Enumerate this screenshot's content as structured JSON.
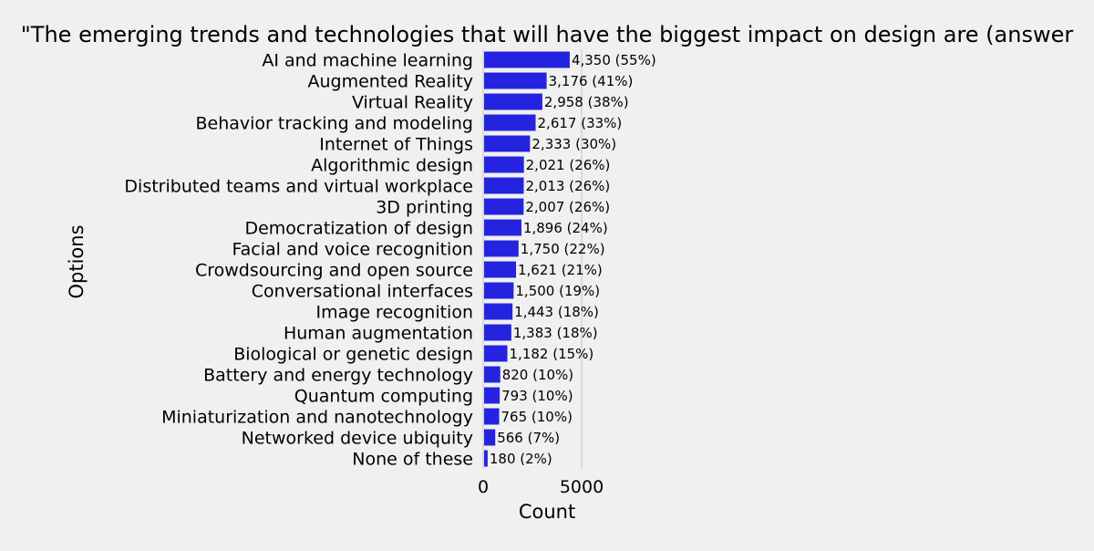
{
  "chart_data": {
    "type": "bar",
    "orientation": "horizontal",
    "title": "\"The emerging trends and technologies that will have the biggest impact on design are (answer",
    "xlabel": "Count",
    "ylabel": "Options",
    "xlim": [
      0,
      6300
    ],
    "xticks": [
      {
        "value": 0,
        "label": "0"
      },
      {
        "value": 5000,
        "label": "5000"
      }
    ],
    "grid": "x-only",
    "legend": "none",
    "bar_color": "#2424e0",
    "background": "#f0f0f0",
    "categories": [
      "AI and machine learning",
      "Augmented Reality",
      "Virtual Reality",
      "Behavior tracking and modeling",
      "Internet of Things",
      "Algorithmic design",
      "Distributed teams and virtual workplace",
      "3D printing",
      "Democratization of design",
      "Facial and voice recognition",
      "Crowdsourcing and open source",
      "Conversational interfaces",
      "Image recognition",
      "Human augmentation",
      "Biological or genetic design",
      "Battery and energy technology",
      "Quantum computing",
      "Miniaturization and nanotechnology",
      "Networked device ubiquity",
      "None of these"
    ],
    "values": [
      4350,
      3176,
      2958,
      2617,
      2333,
      2021,
      2013,
      2007,
      1896,
      1750,
      1621,
      1500,
      1443,
      1383,
      1182,
      820,
      793,
      765,
      566,
      180
    ],
    "data_labels": [
      "4,350 (55%)",
      "3,176 (41%)",
      "2,958 (38%)",
      "2,617 (33%)",
      "2,333 (30%)",
      "2,021 (26%)",
      "2,013 (26%)",
      "2,007 (26%)",
      "1,896 (24%)",
      "1,750 (22%)",
      "1,621 (21%)",
      "1,500 (19%)",
      "1,443 (18%)",
      "1,383 (18%)",
      "1,182 (15%)",
      "820 (10%)",
      "793 (10%)",
      "765 (10%)",
      "566 (7%)",
      "180 (2%)"
    ]
  }
}
